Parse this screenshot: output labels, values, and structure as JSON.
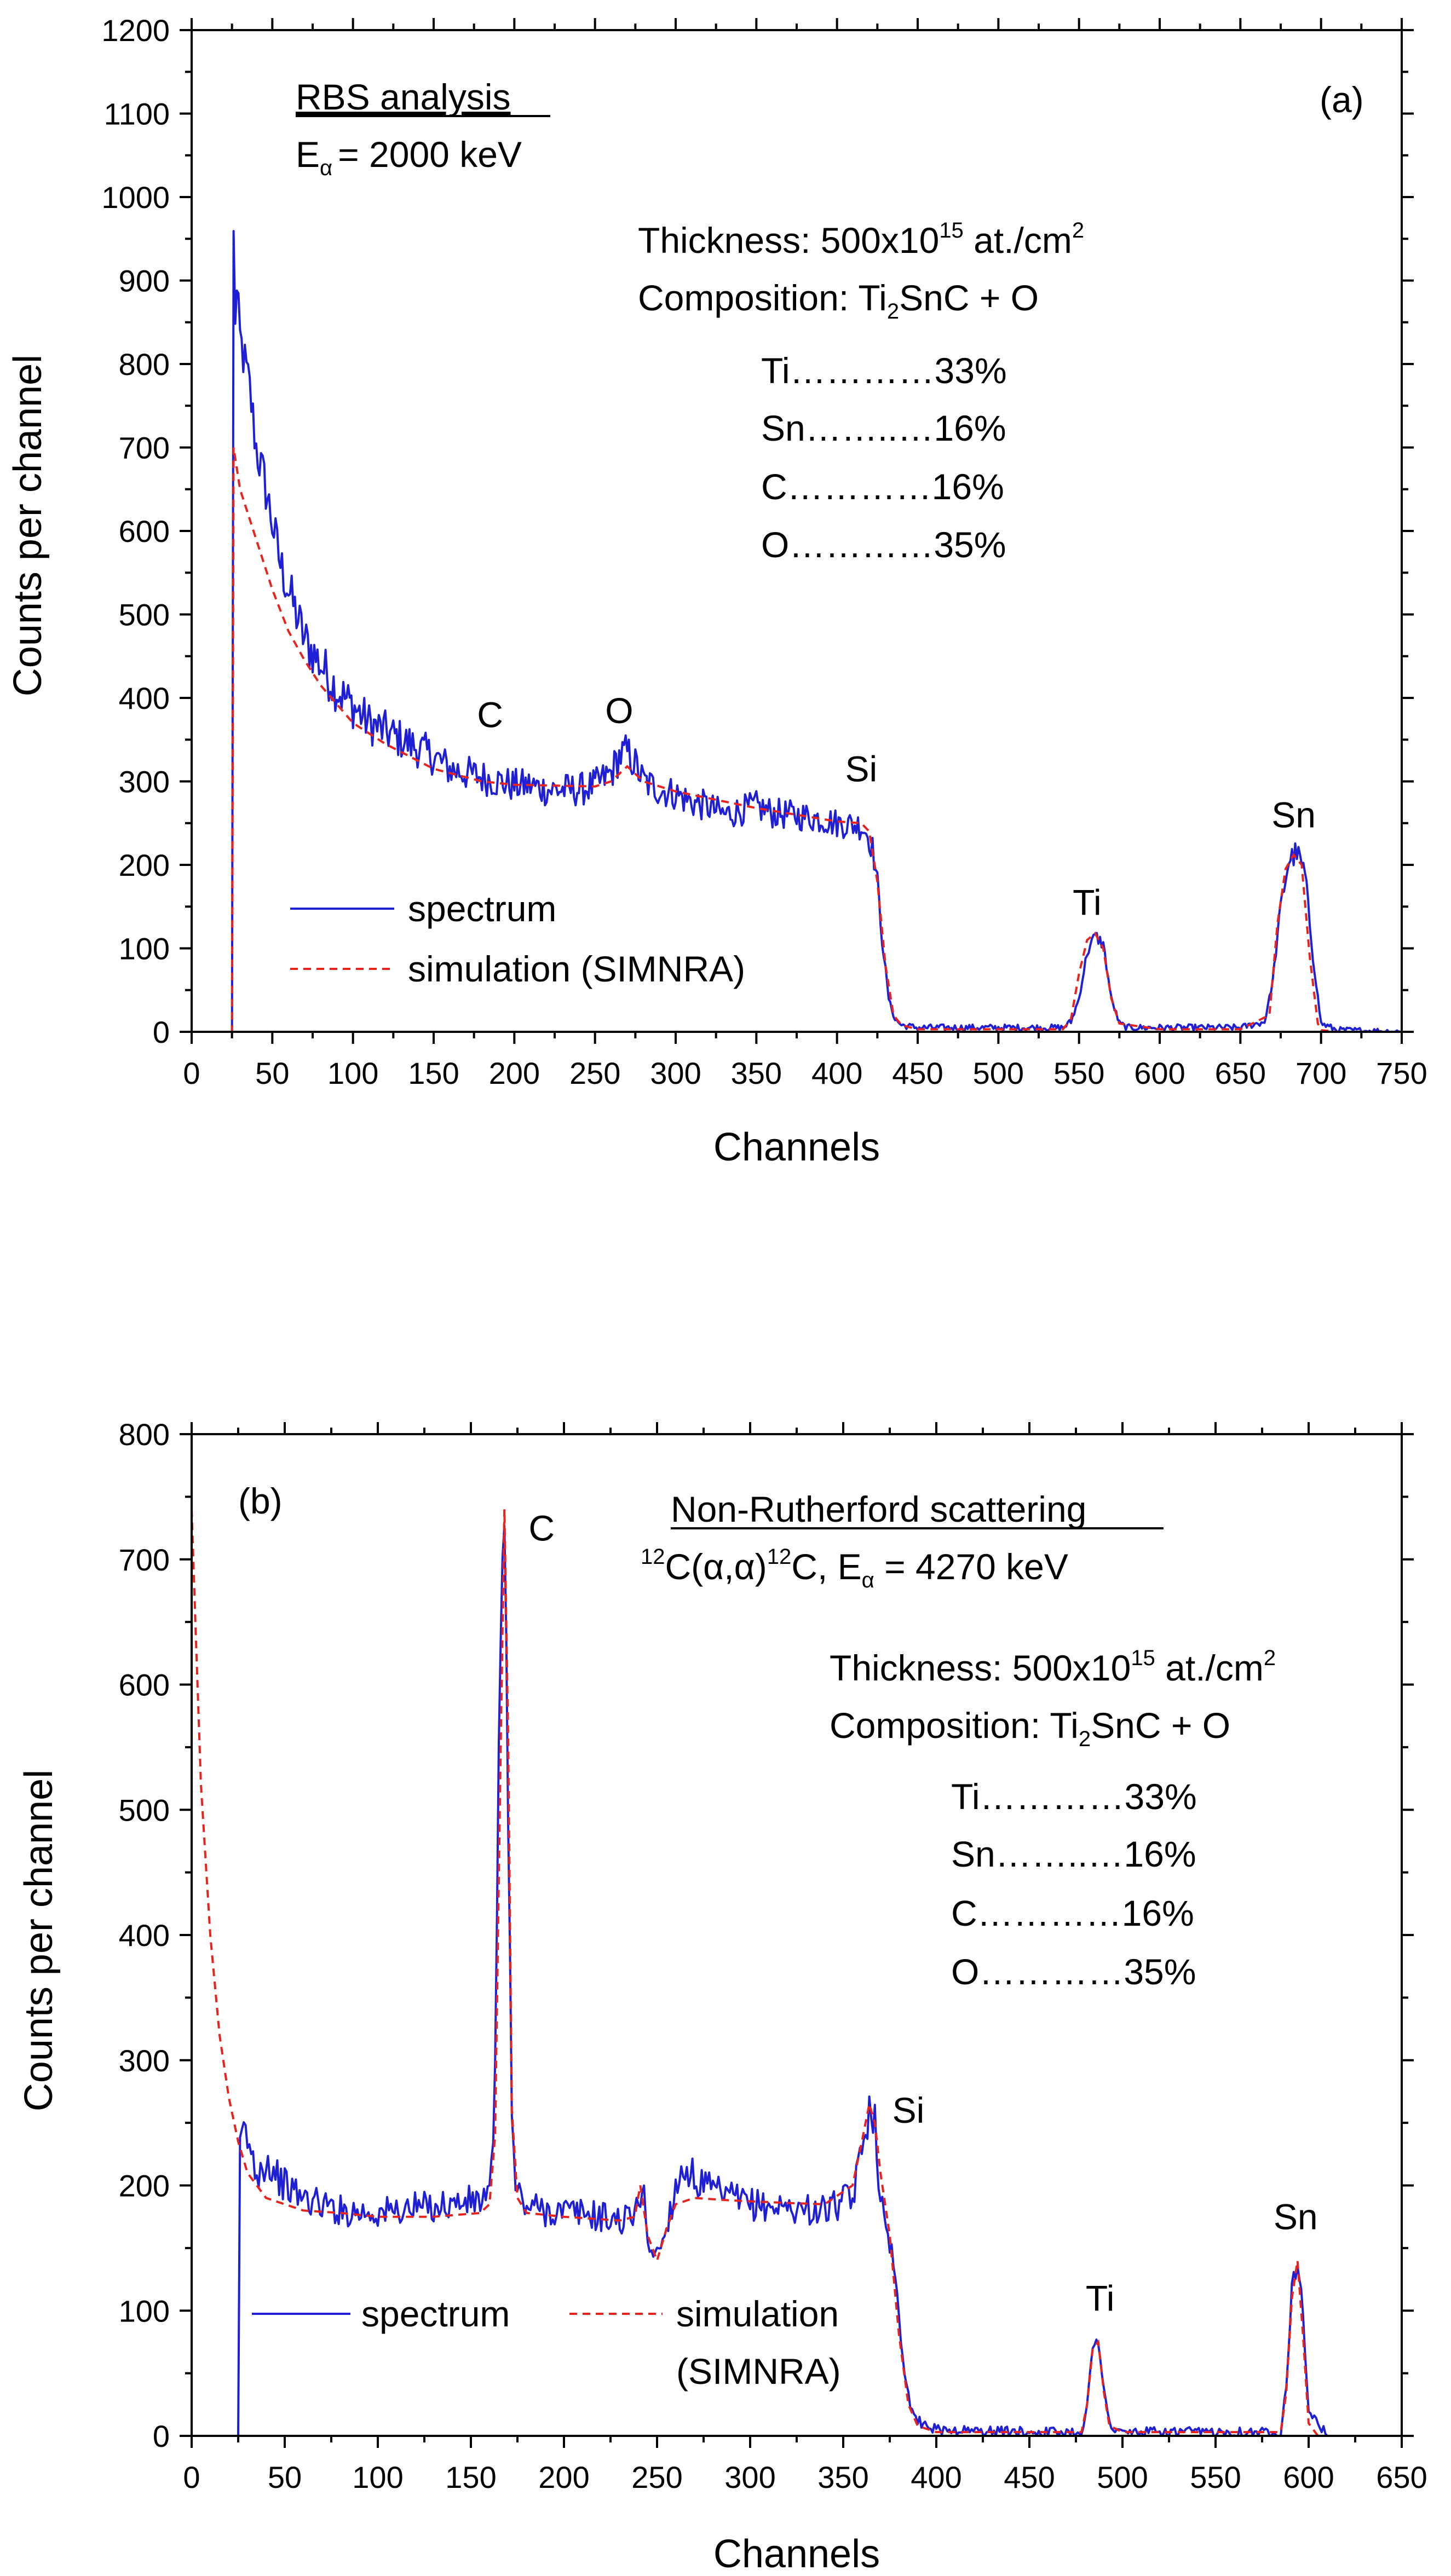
{
  "chart_data": [
    {
      "type": "line",
      "panel_label": "(a)",
      "title": "RBS analysis",
      "energy_text": "= 2000 keV",
      "energy_symbol": "E",
      "energy_subscript": "α",
      "xlabel": "Channels",
      "ylabel": "Counts per channel",
      "xlim": [
        0,
        750
      ],
      "ylim": [
        0,
        1200
      ],
      "xticks": [
        0,
        50,
        100,
        150,
        200,
        250,
        300,
        350,
        400,
        450,
        500,
        550,
        600,
        650,
        700,
        750
      ],
      "yticks": [
        0,
        100,
        200,
        300,
        400,
        500,
        600,
        700,
        800,
        900,
        1000,
        1100,
        1200
      ],
      "thickness": {
        "prefix": "Thickness: 500x10",
        "exp": "15",
        "mid": " at./cm",
        "exp2": "2"
      },
      "composition": {
        "prefix": "Composition: Ti",
        "sub": "2",
        "suffix": "SnC + O"
      },
      "elements": [
        "Ti…………33%",
        "Sn……..…16%",
        "C…………16%",
        "O…………35%"
      ],
      "peak_labels": [
        {
          "text": "C",
          "x": 185,
          "y": 365
        },
        {
          "text": "O",
          "x": 265,
          "y": 370
        },
        {
          "text": "Si",
          "x": 415,
          "y": 300
        },
        {
          "text": "Ti",
          "x": 555,
          "y": 140
        },
        {
          "text": "Sn",
          "x": 683,
          "y": 245
        }
      ],
      "legend": {
        "spectrum": "spectrum",
        "simulation": "simulation (SIMNRA)"
      },
      "series": [
        {
          "name": "spectrum",
          "style": "solid",
          "color": "#1f1fd6",
          "x": [
            0,
            24,
            25,
            26,
            27,
            28,
            30,
            33,
            36,
            40,
            45,
            50,
            55,
            60,
            65,
            70,
            80,
            90,
            100,
            110,
            120,
            130,
            140,
            150,
            160,
            170,
            180,
            190,
            200,
            210,
            220,
            230,
            240,
            250,
            260,
            265,
            270,
            275,
            280,
            290,
            300,
            310,
            320,
            330,
            340,
            350,
            360,
            370,
            380,
            390,
            400,
            410,
            415,
            418,
            422,
            425,
            428,
            432,
            436,
            440,
            450,
            460,
            500,
            540,
            545,
            550,
            555,
            560,
            565,
            570,
            575,
            580,
            600,
            650,
            665,
            670,
            675,
            680,
            685,
            690,
            695,
            700,
            710,
            750
          ],
          "y": [
            0,
            0,
            0,
            950,
            860,
            880,
            830,
            800,
            770,
            700,
            660,
            610,
            560,
            530,
            500,
            470,
            440,
            410,
            390,
            370,
            360,
            350,
            340,
            330,
            315,
            310,
            305,
            300,
            295,
            295,
            290,
            290,
            290,
            295,
            310,
            330,
            335,
            320,
            300,
            290,
            285,
            275,
            270,
            260,
            265,
            270,
            262,
            260,
            258,
            255,
            250,
            248,
            247,
            240,
            220,
            180,
            110,
            40,
            15,
            8,
            5,
            5,
            5,
            5,
            12,
            40,
            95,
            115,
            105,
            40,
            10,
            5,
            5,
            5,
            12,
            60,
            150,
            205,
            215,
            190,
            90,
            10,
            2,
            0
          ]
        },
        {
          "name": "simulation (SIMNRA)",
          "style": "dashed",
          "color": "#e8231e",
          "x": [
            0,
            24,
            25,
            26,
            30,
            40,
            50,
            60,
            70,
            80,
            100,
            120,
            150,
            180,
            200,
            250,
            260,
            270,
            280,
            300,
            350,
            400,
            415,
            420,
            425,
            430,
            435,
            440,
            450,
            540,
            545,
            550,
            555,
            560,
            565,
            570,
            575,
            600,
            650,
            668,
            673,
            678,
            683,
            688,
            693,
            698,
            700,
            710,
            750
          ],
          "y": [
            0,
            0,
            0,
            700,
            650,
            590,
            530,
            480,
            445,
            415,
            370,
            345,
            315,
            300,
            296,
            294,
            300,
            318,
            300,
            288,
            268,
            252,
            250,
            240,
            180,
            80,
            20,
            8,
            3,
            3,
            15,
            70,
            110,
            118,
            100,
            40,
            10,
            3,
            3,
            20,
            130,
            195,
            212,
            200,
            90,
            10,
            2,
            0,
            0
          ]
        }
      ]
    },
    {
      "type": "line",
      "panel_label": "(b)",
      "title": "Non-Rutherford scattering",
      "reaction": {
        "sup1": "12",
        "mid": "C(α,α)",
        "sup2": "12",
        "end": "C,  E",
        "sub": "α",
        "tail": " = 4270 keV"
      },
      "xlabel": "Channels",
      "ylabel": "Counts per channel",
      "xlim": [
        0,
        650
      ],
      "ylim": [
        0,
        800
      ],
      "xticks": [
        0,
        50,
        100,
        150,
        200,
        250,
        300,
        350,
        400,
        450,
        500,
        550,
        600,
        650
      ],
      "yticks": [
        0,
        100,
        200,
        300,
        400,
        500,
        600,
        700,
        800
      ],
      "thickness": {
        "prefix": "Thickness: 500x10",
        "exp": "15",
        "mid": " at./cm",
        "exp2": "2"
      },
      "composition": {
        "prefix": "Composition: Ti",
        "sub": "2",
        "suffix": "SnC + O"
      },
      "elements": [
        "Ti…………33%",
        "Sn……..…16%",
        "C…………16%",
        "O…………35%"
      ],
      "peak_labels": [
        {
          "text": "C",
          "x": 188,
          "y": 715
        },
        {
          "text": "Si",
          "x": 385,
          "y": 250
        },
        {
          "text": "Ti",
          "x": 488,
          "y": 100
        },
        {
          "text": "Sn",
          "x": 593,
          "y": 165
        }
      ],
      "legend": {
        "spectrum": "spectrum",
        "simulation": "simulation",
        "simulation2": "(SIMNRA)"
      },
      "series": [
        {
          "name": "spectrum",
          "style": "solid",
          "color": "#1f1fd6",
          "x": [
            0,
            25,
            26,
            28,
            30,
            35,
            40,
            50,
            60,
            70,
            80,
            100,
            120,
            140,
            155,
            160,
            162,
            164,
            166,
            168,
            170,
            172,
            174,
            178,
            190,
            210,
            230,
            238,
            242,
            246,
            250,
            255,
            260,
            265,
            270,
            280,
            290,
            300,
            320,
            340,
            355,
            360,
            364,
            367,
            370,
            373,
            376,
            379,
            382,
            386,
            390,
            400,
            450,
            478,
            481,
            484,
            487,
            490,
            493,
            496,
            500,
            560,
            585,
            588,
            591,
            594,
            597,
            600,
            610,
            650
          ],
          "y": [
            0,
            0,
            225,
            245,
            235,
            210,
            220,
            200,
            190,
            185,
            180,
            178,
            182,
            185,
            188,
            190,
            230,
            400,
            650,
            755,
            500,
            250,
            200,
            185,
            180,
            178,
            172,
            175,
            200,
            150,
            145,
            165,
            200,
            215,
            205,
            195,
            190,
            185,
            182,
            180,
            190,
            225,
            265,
            255,
            190,
            160,
            150,
            120,
            60,
            25,
            12,
            5,
            3,
            3,
            25,
            70,
            75,
            40,
            10,
            3,
            3,
            3,
            3,
            40,
            120,
            140,
            95,
            20,
            0,
            0
          ]
        },
        {
          "name": "simulation (SIMNRA)",
          "style": "dashed",
          "color": "#e8231e",
          "x": [
            0,
            2,
            5,
            10,
            15,
            20,
            25,
            30,
            40,
            60,
            80,
            100,
            130,
            155,
            160,
            163,
            166,
            168,
            170,
            172,
            175,
            180,
            200,
            230,
            238,
            241,
            245,
            250,
            255,
            260,
            270,
            290,
            320,
            340,
            355,
            360,
            364,
            367,
            370,
            375,
            380,
            385,
            390,
            400,
            450,
            478,
            481,
            484,
            487,
            490,
            493,
            500,
            560,
            585,
            588,
            591,
            594,
            597,
            600,
            605,
            650
          ],
          "y": [
            740,
            650,
            520,
            400,
            320,
            270,
            235,
            210,
            190,
            180,
            178,
            175,
            175,
            178,
            185,
            240,
            550,
            740,
            560,
            260,
            190,
            178,
            175,
            172,
            175,
            200,
            160,
            140,
            165,
            185,
            190,
            188,
            186,
            185,
            200,
            235,
            265,
            250,
            210,
            160,
            80,
            25,
            8,
            3,
            3,
            3,
            25,
            70,
            75,
            35,
            8,
            3,
            3,
            3,
            35,
            110,
            140,
            80,
            10,
            0,
            0
          ]
        }
      ]
    }
  ]
}
